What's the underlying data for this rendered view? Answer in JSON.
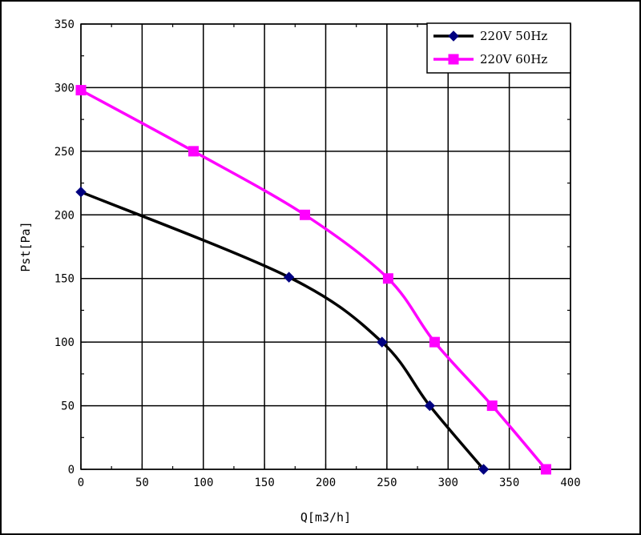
{
  "chart_data": {
    "type": "line",
    "title": "",
    "xlabel": "Q[m3/h]",
    "ylabel": "Pst[Pa]",
    "xlim": [
      0,
      400
    ],
    "ylim": [
      0,
      350
    ],
    "xticks": [
      0,
      50,
      100,
      150,
      200,
      250,
      300,
      350,
      400
    ],
    "yticks": [
      0,
      50,
      100,
      150,
      200,
      250,
      300,
      350
    ],
    "xtick_labels": [
      "0",
      "50",
      "100",
      "150",
      "200",
      "250",
      "300",
      "350",
      "400"
    ],
    "ytick_labels": [
      "0",
      "50",
      "100",
      "150",
      "200",
      "250",
      "300",
      "350"
    ],
    "grid": true,
    "legend_position": "top-right",
    "series": [
      {
        "name": "220V 50Hz",
        "color": "#000000",
        "marker_color": "#000080",
        "marker": "diamond",
        "x": [
          0,
          170,
          246,
          285,
          329
        ],
        "y": [
          218,
          151,
          100,
          50,
          0
        ]
      },
      {
        "name": "220V 60Hz",
        "color": "#ff00ff",
        "marker_color": "#ff00ff",
        "marker": "square",
        "x": [
          0,
          92,
          183,
          251,
          289,
          336,
          380
        ],
        "y": [
          298,
          250,
          200,
          150,
          100,
          50,
          0
        ]
      }
    ]
  }
}
